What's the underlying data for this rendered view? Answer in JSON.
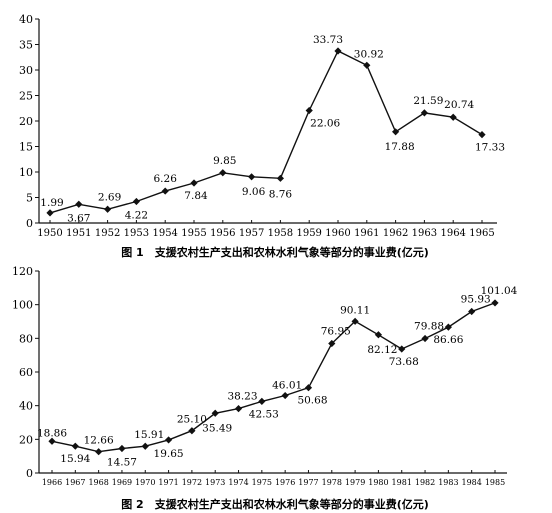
{
  "chart_data": [
    {
      "type": "line",
      "caption": "图 1　支援农村生产支出和农林水利气象等部分的事业费(亿元)",
      "categories": [
        "1950",
        "1951",
        "1952",
        "1953",
        "1954",
        "1955",
        "1956",
        "1957",
        "1958",
        "1959",
        "1960",
        "1961",
        "1962",
        "1963",
        "1964",
        "1965"
      ],
      "values": [
        1.99,
        3.67,
        2.69,
        4.22,
        6.26,
        7.84,
        9.85,
        9.06,
        8.76,
        22.06,
        33.73,
        30.92,
        17.88,
        21.59,
        20.74,
        17.33
      ],
      "value_labels": [
        "1.99",
        "3.67",
        "2.69",
        "4.22",
        "6.26",
        "7.84",
        "9.85",
        "9.06",
        "8.76",
        "22.06",
        "33.73",
        "30.92",
        "17.88",
        "21.59",
        "20.74",
        "17.33"
      ],
      "y_ticks": [
        "0",
        "5",
        "10",
        "15",
        "20",
        "25",
        "30",
        "35",
        "40"
      ],
      "ylim": [
        0,
        40
      ],
      "grid": false
    },
    {
      "type": "line",
      "caption": "图 2　支援农村生产支出和农林水利气象等部分的事业费(亿元)",
      "categories": [
        "1966",
        "1967",
        "1968",
        "1969",
        "1970",
        "1971",
        "1972",
        "1973",
        "1974",
        "1975",
        "1976",
        "1977",
        "1978",
        "1979",
        "1980",
        "1981",
        "1982",
        "1983",
        "1984",
        "1985"
      ],
      "values": [
        18.86,
        15.94,
        12.66,
        14.57,
        15.91,
        19.65,
        25.1,
        35.49,
        38.23,
        42.53,
        46.01,
        50.68,
        76.95,
        90.11,
        82.12,
        73.68,
        79.88,
        86.66,
        95.93,
        101.04
      ],
      "value_labels": [
        "18.86",
        "15.94",
        "12.66",
        "14.57",
        "15.91",
        "19.65",
        "25.10",
        "35.49",
        "38.23",
        "42.53",
        "46.01",
        "50.68",
        "76.95",
        "90.11",
        "82.12",
        "73.68",
        "79.88",
        "86.66",
        "95.93",
        "101.04"
      ],
      "y_ticks": [
        "0",
        "20",
        "40",
        "60",
        "80",
        "100",
        "120"
      ],
      "ylim": [
        0,
        120
      ],
      "grid": false
    }
  ]
}
